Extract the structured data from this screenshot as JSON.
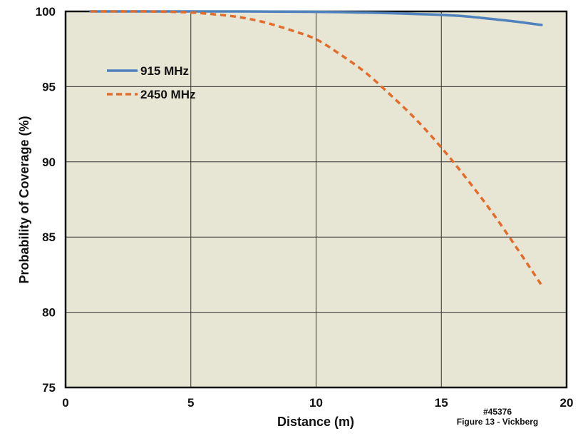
{
  "chart_data": {
    "type": "line",
    "title": "",
    "xlabel": "Distance (m)",
    "ylabel": "Probability of Coverage (%)",
    "xlim": [
      0,
      20
    ],
    "ylim": [
      75,
      100
    ],
    "xticks": [
      "0",
      "5",
      "10",
      "15",
      "20"
    ],
    "yticks": [
      "75",
      "80",
      "85",
      "90",
      "95",
      "100"
    ],
    "grid": true,
    "legend_position": "upper-left",
    "series": [
      {
        "name": "915 MHz",
        "color": "#4f81bd",
        "style": "solid",
        "x": [
          1,
          3,
          5,
          7,
          9,
          10,
          11,
          12,
          13,
          14,
          15,
          16,
          17,
          18,
          19
        ],
        "y": [
          100,
          100,
          100,
          100,
          99.98,
          99.97,
          99.95,
          99.92,
          99.88,
          99.83,
          99.77,
          99.67,
          99.5,
          99.32,
          99.1
        ]
      },
      {
        "name": "2450 MHz",
        "color": "#e46c2a",
        "style": "dashed",
        "x": [
          1,
          2,
          3,
          4,
          5,
          6,
          7,
          8,
          9,
          10,
          11,
          12,
          13,
          14,
          15,
          16,
          17,
          18,
          19
        ],
        "y": [
          100,
          100,
          100,
          99.98,
          99.93,
          99.8,
          99.6,
          99.25,
          98.75,
          98.15,
          97.1,
          95.9,
          94.4,
          92.8,
          90.95,
          88.9,
          86.7,
          84.3,
          81.8
        ]
      }
    ],
    "annotations": [
      "#45376",
      "Figure 13 - Vickberg"
    ]
  }
}
